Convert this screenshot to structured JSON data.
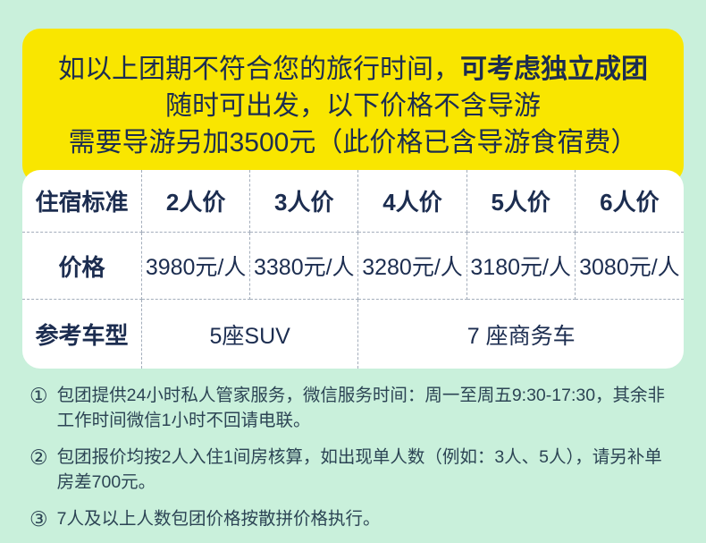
{
  "colors": {
    "page_background": "#C9F0DB",
    "banner_background": "#F9E600",
    "table_background": "#FFFFFF",
    "primary_text": "#1C2D50",
    "note_text": "#2C4454",
    "dashed_border": "#A3ADBB"
  },
  "banner": {
    "line1_regular": "如以上团期不符合您的旅行时间，",
    "line1_bold": "可考虑独立成团",
    "line2": "随时可出发，以下价格不含导游",
    "line3": "需要导游另加3500元（此价格已含导游食宿费）"
  },
  "table": {
    "header": [
      "住宿标准",
      "2人价",
      "3人价",
      "4人价",
      "5人价",
      "6人价"
    ],
    "price_row_label": "价格",
    "prices": [
      "3980元/人",
      "3380元/人",
      "3280元/人",
      "3180元/人",
      "3080元/人"
    ],
    "vehicle_row_label": "参考车型",
    "vehicle_suv": "5座SUV",
    "vehicle_van": "7 座商务车"
  },
  "notes": [
    {
      "num": "①",
      "lines": [
        "包团提供24小时私人管家服务，微信服务时间：周一至周五9:30-17:30，其余非",
        "工作时间微信1小时不回请电联。"
      ]
    },
    {
      "num": "②",
      "lines": [
        "包团报价均按2人入住1间房核算，如出现单人数（例如：3人、5人），请另补单",
        "房差700元。"
      ]
    },
    {
      "num": "③",
      "lines": [
        "7人及以上人数包团价格按散拼价格执行。"
      ]
    }
  ]
}
